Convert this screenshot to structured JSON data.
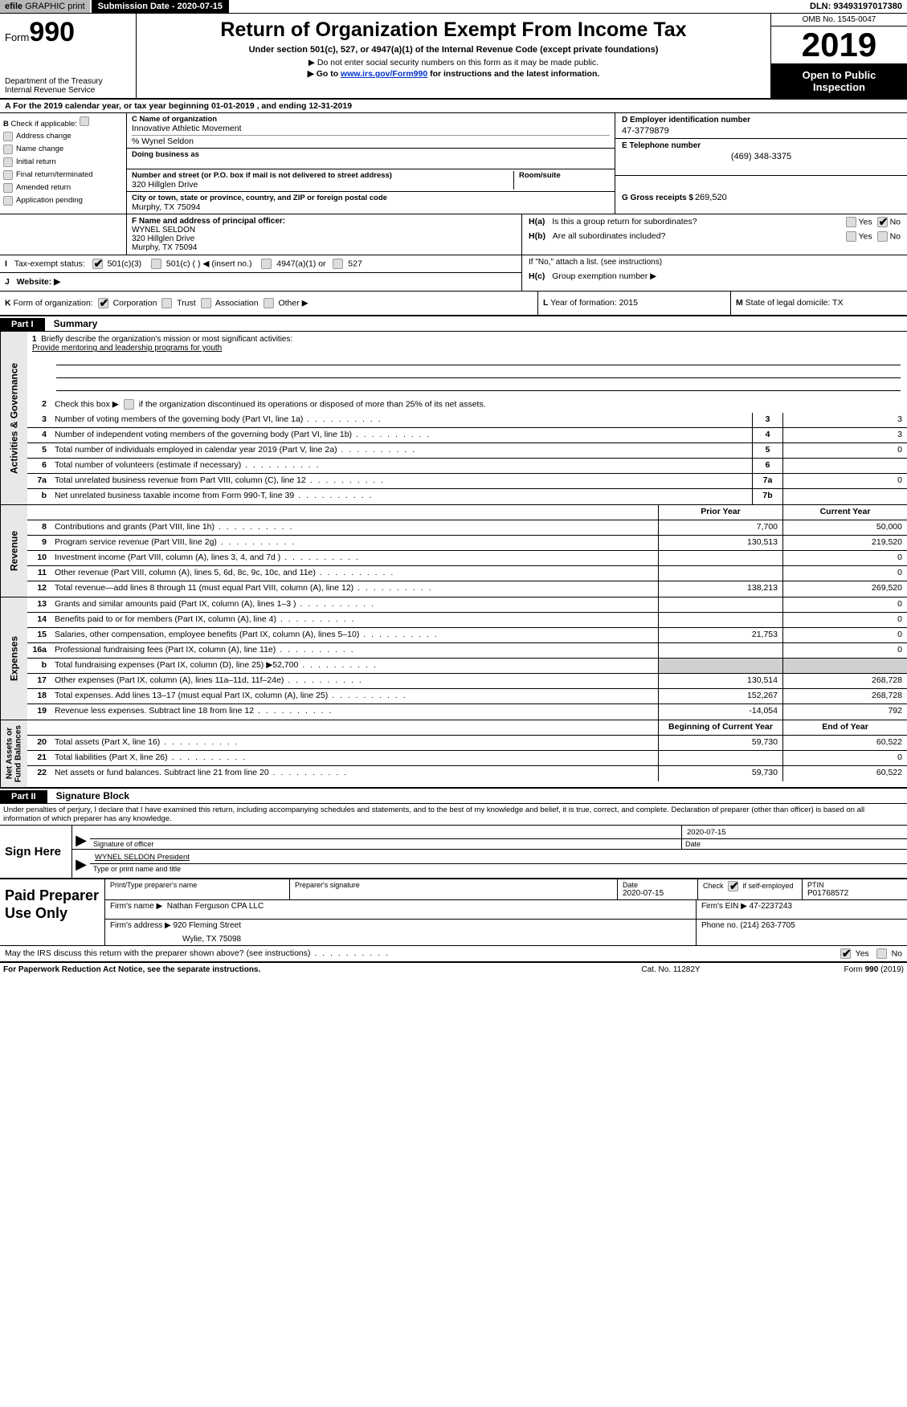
{
  "topbar": {
    "efile_prefix": "efile",
    "efile_rest": " GRAPHIC  print",
    "submission": "Submission Date - 2020-07-15",
    "dln": "DLN: 93493197017380"
  },
  "header": {
    "form_word": "Form",
    "form_num": "990",
    "title": "Return of Organization Exempt From Income Tax",
    "sub1": "Under section 501(c), 527, or 4947(a)(1) of the Internal Revenue Code (except private foundations)",
    "sub2": "▶ Do not enter social security numbers on this form as it may be made public.",
    "sub3_pre": "▶ Go to ",
    "sub3_link": "www.irs.gov/Form990",
    "sub3_post": " for instructions and the latest information.",
    "dept1": "Department of the Treasury",
    "dept2": "Internal Revenue Service",
    "omb": "OMB No. 1545-0047",
    "year": "2019",
    "open1": "Open to Public",
    "open2": "Inspection"
  },
  "rowA": "A   For the 2019 calendar year, or tax year beginning 01-01-2019       , and ending 12-31-2019",
  "colB": {
    "title": "B",
    "check_label": "Check if applicable:",
    "items": [
      "Address change",
      "Name change",
      "Initial return",
      "Final return/terminated",
      "Amended return",
      "Application pending"
    ]
  },
  "colC": {
    "name_label": "C Name of organization",
    "name": "Innovative Athletic Movement",
    "care_of": "% Wynel Seldon",
    "dba_label": "Doing business as",
    "dba": "",
    "addr_label": "Number and street (or P.O. box if mail is not delivered to street address)",
    "addr": "320 Hillglen Drive",
    "room_label": "Room/suite",
    "city_label": "City or town, state or province, country, and ZIP or foreign postal code",
    "city": "Murphy, TX   75094",
    "f_label": "F Name and address of principal officer:",
    "f_name": "WYNEL SELDON",
    "f_addr1": "320 Hillglen Drive",
    "f_addr2": "Murphy, TX   75094"
  },
  "colD": {
    "ein_label": "D Employer identification number",
    "ein": "47-3779879",
    "phone_label": "E Telephone number",
    "phone": "(469) 348-3375",
    "gross_label": "G Gross receipts $",
    "gross": "269,520"
  },
  "hsection": {
    "ha_label": "H(a)",
    "ha_text": "Is this a group return for subordinates?",
    "hb_label": "H(b)",
    "hb_text": "Are all subordinates included?",
    "hb_note": "If \"No,\" attach a list. (see instructions)",
    "hc_label": "H(c)",
    "hc_text": "Group exemption number ▶",
    "yes": "Yes",
    "no": "No"
  },
  "rowI": {
    "label": "I",
    "text": "Tax-exempt status:",
    "opts": [
      "501(c)(3)",
      "501(c) (   ) ◀ (insert no.)",
      "4947(a)(1) or",
      "527"
    ]
  },
  "rowJ": {
    "label": "J",
    "text": "Website: ▶"
  },
  "rowK": {
    "label": "K",
    "text": "Form of organization:",
    "opts": [
      "Corporation",
      "Trust",
      "Association",
      "Other ▶"
    ]
  },
  "rowL": {
    "label": "L",
    "text": "Year of formation: 2015"
  },
  "rowM": {
    "label": "M",
    "text": "State of legal domicile: TX"
  },
  "partI": {
    "tag": "Part I",
    "title": "Summary"
  },
  "summary": {
    "line1_label": "1",
    "line1": "Briefly describe the organization's mission or most significant activities:",
    "mission": "Provide mentoring and leadership programs for youth",
    "line2_label": "2",
    "line2": "Check this box ▶         if the organization discontinued its operations or disposed of more than 25% of its net assets.",
    "rows_gov": [
      {
        "n": "3",
        "d": "Number of voting members of the governing body (Part VI, line 1a)",
        "box": "3",
        "v": "3"
      },
      {
        "n": "4",
        "d": "Number of independent voting members of the governing body (Part VI, line 1b)",
        "box": "4",
        "v": "3"
      },
      {
        "n": "5",
        "d": "Total number of individuals employed in calendar year 2019 (Part V, line 2a)",
        "box": "5",
        "v": "0"
      },
      {
        "n": "6",
        "d": "Total number of volunteers (estimate if necessary)",
        "box": "6",
        "v": ""
      },
      {
        "n": "7a",
        "d": "Total unrelated business revenue from Part VIII, column (C), line 12",
        "box": "7a",
        "v": "0"
      },
      {
        "n": "b",
        "d": "Net unrelated business taxable income from Form 990-T, line 39",
        "box": "7b",
        "v": ""
      }
    ],
    "prior": "Prior Year",
    "current": "Current Year",
    "rows_rev": [
      {
        "n": "8",
        "d": "Contributions and grants (Part VIII, line 1h)",
        "p": "7,700",
        "c": "50,000"
      },
      {
        "n": "9",
        "d": "Program service revenue (Part VIII, line 2g)",
        "p": "130,513",
        "c": "219,520"
      },
      {
        "n": "10",
        "d": "Investment income (Part VIII, column (A), lines 3, 4, and 7d )",
        "p": "",
        "c": "0"
      },
      {
        "n": "11",
        "d": "Other revenue (Part VIII, column (A), lines 5, 6d, 8c, 9c, 10c, and 11e)",
        "p": "",
        "c": "0"
      },
      {
        "n": "12",
        "d": "Total revenue—add lines 8 through 11 (must equal Part VIII, column (A), line 12)",
        "p": "138,213",
        "c": "269,520"
      }
    ],
    "rows_exp": [
      {
        "n": "13",
        "d": "Grants and similar amounts paid (Part IX, column (A), lines 1–3 )",
        "p": "",
        "c": "0"
      },
      {
        "n": "14",
        "d": "Benefits paid to or for members (Part IX, column (A), line 4)",
        "p": "",
        "c": "0"
      },
      {
        "n": "15",
        "d": "Salaries, other compensation, employee benefits (Part IX, column (A), lines 5–10)",
        "p": "21,753",
        "c": "0"
      },
      {
        "n": "16a",
        "d": "Professional fundraising fees (Part IX, column (A), line 11e)",
        "p": "",
        "c": "0"
      },
      {
        "n": "b",
        "d": "Total fundraising expenses (Part IX, column (D), line 25) ▶52,700",
        "p": "grey",
        "c": "grey"
      },
      {
        "n": "17",
        "d": "Other expenses (Part IX, column (A), lines 11a–11d, 11f–24e)",
        "p": "130,514",
        "c": "268,728"
      },
      {
        "n": "18",
        "d": "Total expenses. Add lines 13–17 (must equal Part IX, column (A), line 25)",
        "p": "152,267",
        "c": "268,728"
      },
      {
        "n": "19",
        "d": "Revenue less expenses. Subtract line 18 from line 12",
        "p": "-14,054",
        "c": "792"
      }
    ],
    "begin": "Beginning of Current Year",
    "end": "End of Year",
    "rows_net": [
      {
        "n": "20",
        "d": "Total assets (Part X, line 16)",
        "p": "59,730",
        "c": "60,522"
      },
      {
        "n": "21",
        "d": "Total liabilities (Part X, line 26)",
        "p": "",
        "c": "0"
      },
      {
        "n": "22",
        "d": "Net assets or fund balances. Subtract line 21 from line 20",
        "p": "59,730",
        "c": "60,522"
      }
    ]
  },
  "vtabs": {
    "gov": "Activities & Governance",
    "rev": "Revenue",
    "exp": "Expenses",
    "net": "Net Assets or\nFund Balances"
  },
  "partII": {
    "tag": "Part II",
    "title": "Signature Block"
  },
  "penalties": "Under penalties of perjury, I declare that I have examined this return, including accompanying schedules and statements, and to the best of my knowledge and belief, it is true, correct, and complete. Declaration of preparer (other than officer) is based on all information of which preparer has any knowledge.",
  "sign": {
    "here": "Sign Here",
    "sig_label": "Signature of officer",
    "date_val": "2020-07-15",
    "date_label": "Date",
    "name": "WYNEL SELDON  President",
    "name_label": "Type or print name and title"
  },
  "paid": {
    "title": "Paid Preparer Use Only",
    "h1": "Print/Type preparer's name",
    "h2": "Preparer's signature",
    "h3": "Date",
    "h3v": "2020-07-15",
    "h4": "Check          if self-employed",
    "h5": "PTIN",
    "h5v": "P01768572",
    "firm_name_l": "Firm's name      ▶",
    "firm_name": "Nathan Ferguson CPA LLC",
    "firm_ein_l": "Firm's EIN ▶",
    "firm_ein": "47-2237243",
    "firm_addr_l": "Firm's address ▶",
    "firm_addr1": "920 Fleming Street",
    "firm_addr2": "Wylie, TX   75098",
    "firm_phone_l": "Phone no.",
    "firm_phone": "(214) 263-7705"
  },
  "irs_discuss": "May the IRS discuss this return with the preparer shown above? (see instructions)",
  "footer": {
    "left": "For Paperwork Reduction Act Notice, see the separate instructions.",
    "mid": "Cat. No. 11282Y",
    "right_pre": "Form ",
    "right_b": "990",
    "right_post": " (2019)"
  }
}
